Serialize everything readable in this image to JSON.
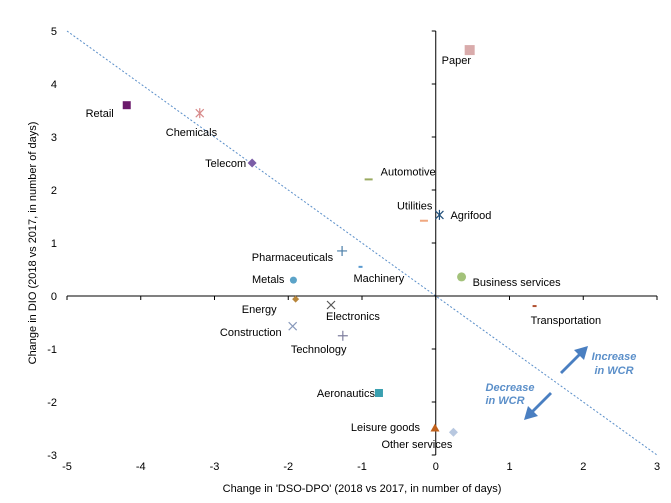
{
  "chart_data": {
    "type": "scatter",
    "title": "",
    "xlabel": "Change in 'DSO-DPO' (2018 vs 2017, in number of days)",
    "ylabel": "Change in DIO (2018 vs 2017, in number of days)",
    "xlim": [
      -5,
      3
    ],
    "ylim": [
      -3,
      5
    ],
    "xticks": [
      "-5",
      "-4",
      "-3",
      "-2",
      "-1",
      "0",
      "1",
      "2",
      "3"
    ],
    "yticks": [
      "-3",
      "-2",
      "-1",
      "0",
      "1",
      "2",
      "3",
      "4",
      "5"
    ],
    "grid": false,
    "legend": "none",
    "trendline": {
      "style": "dashed",
      "color": "#5b8fc9",
      "from": [
        -5,
        5
      ],
      "to": [
        3,
        -3
      ]
    },
    "points": [
      {
        "name": "Paper",
        "x": 0.46,
        "y": 4.64,
        "marker": "square-large",
        "color": "#d9abab"
      },
      {
        "name": "Retail",
        "x": -4.19,
        "y": 3.6,
        "marker": "square",
        "color": "#6b1a6b"
      },
      {
        "name": "Chemicals",
        "x": -3.2,
        "y": 3.45,
        "marker": "star",
        "color": "#d88a8a"
      },
      {
        "name": "Telecom",
        "x": -2.49,
        "y": 2.51,
        "marker": "diamond",
        "color": "#7b5ea7"
      },
      {
        "name": "Automotive",
        "x": -0.91,
        "y": 2.2,
        "marker": "dash",
        "color": "#9aaa60"
      },
      {
        "name": "Utilities",
        "x": -0.16,
        "y": 1.42,
        "marker": "dash",
        "color": "#f0a880"
      },
      {
        "name": "Agrifood",
        "x": 0.05,
        "y": 1.53,
        "marker": "star",
        "color": "#1f4e79"
      },
      {
        "name": "Pharmaceuticals",
        "x": -1.27,
        "y": 0.85,
        "marker": "plus",
        "color": "#4a7ea8"
      },
      {
        "name": "Machinery",
        "x": -1.02,
        "y": 0.55,
        "marker": "dash-small",
        "color": "#5a9ad0"
      },
      {
        "name": "Metals",
        "x": -1.93,
        "y": 0.3,
        "marker": "circle",
        "color": "#5ba3c8"
      },
      {
        "name": "Business services",
        "x": 0.35,
        "y": 0.36,
        "marker": "circle-large",
        "color": "#a3c27a"
      },
      {
        "name": "Energy",
        "x": -1.9,
        "y": -0.06,
        "marker": "diamond-small",
        "color": "#b8863b"
      },
      {
        "name": "Electronics",
        "x": -1.42,
        "y": -0.17,
        "marker": "x",
        "color": "#555555"
      },
      {
        "name": "Transportation",
        "x": 1.34,
        "y": -0.19,
        "marker": "dash-small",
        "color": "#b05030"
      },
      {
        "name": "Construction",
        "x": -1.94,
        "y": -0.57,
        "marker": "x",
        "color": "#8899bb"
      },
      {
        "name": "Technology",
        "x": -1.26,
        "y": -0.75,
        "marker": "plus",
        "color": "#8080a0"
      },
      {
        "name": "Aeronautics",
        "x": -0.77,
        "y": -1.83,
        "marker": "square",
        "color": "#3aa0b0"
      },
      {
        "name": "Leisure goods",
        "x": -0.01,
        "y": -2.49,
        "marker": "triangle",
        "color": "#c0601a"
      },
      {
        "name": "Other services",
        "x": 0.24,
        "y": -2.57,
        "marker": "diamond",
        "color": "#b8c8e0"
      }
    ],
    "annotations": [
      {
        "line1": "Increase",
        "line2": "in WCR",
        "color": "#5b8fc9"
      },
      {
        "line1": "Decrease",
        "line2": "in WCR",
        "color": "#5b8fc9"
      }
    ]
  }
}
